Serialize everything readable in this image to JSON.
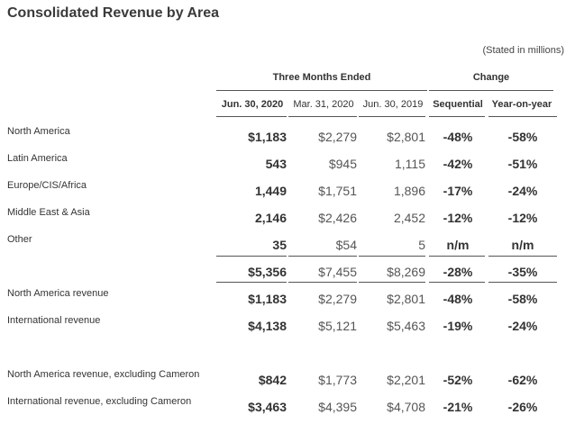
{
  "title": "Consolidated Revenue by Area",
  "note": "(Stated in millions)",
  "groups": {
    "three_months": "Three Months Ended",
    "change": "Change"
  },
  "columns": [
    "Jun. 30, 2020",
    "Mar. 31, 2020",
    "Jun. 30, 2019",
    "Sequential",
    "Year-on-year"
  ],
  "rows": [
    {
      "label": "North America",
      "values": [
        "$1,183",
        "$2,279",
        "$2,801",
        "-48%",
        "-58%"
      ]
    },
    {
      "label": "Latin America",
      "values": [
        "543",
        "$945",
        "1,115",
        "-42%",
        "-51%"
      ]
    },
    {
      "label": "Europe/CIS/Africa",
      "values": [
        "1,449",
        "$1,751",
        "1,896",
        "-17%",
        "-24%"
      ]
    },
    {
      "label": "Middle East & Asia",
      "values": [
        "2,146",
        "$2,426",
        "2,452",
        "-12%",
        "-12%"
      ]
    },
    {
      "label": "Other",
      "values": [
        "35",
        "$54",
        "5",
        "n/m",
        "n/m"
      ]
    },
    {
      "label": "",
      "values": [
        "$5,356",
        "$7,455",
        "$8,269",
        "-28%",
        "-35%"
      ]
    },
    {
      "label": "North America revenue",
      "values": [
        "$1,183",
        "$2,279",
        "$2,801",
        "-48%",
        "-58%"
      ]
    },
    {
      "label": "International revenue",
      "values": [
        "$4,138",
        "$5,121",
        "$5,463",
        "-19%",
        "-24%"
      ]
    },
    {
      "label": "North America revenue, excluding Cameron",
      "values": [
        "$842",
        "$1,773",
        "$2,201",
        "-52%",
        "-62%"
      ]
    },
    {
      "label": "International revenue, excluding Cameron",
      "values": [
        "$3,463",
        "$4,395",
        "$4,708",
        "-21%",
        "-26%"
      ]
    }
  ]
}
